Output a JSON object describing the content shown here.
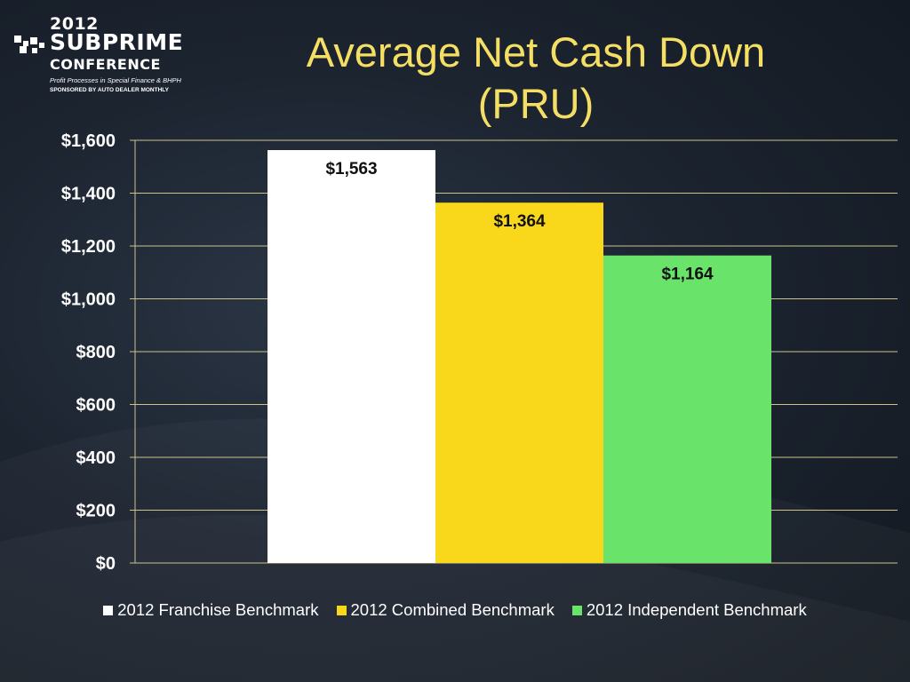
{
  "logo": {
    "year": "2012",
    "brand": "SUBPRIME",
    "conference": "CONFERENCE",
    "tagline": "Profit Processes in Special Finance & BHPH",
    "sponsor": "SPONSORED BY AUTO DEALER MONTHLY"
  },
  "title_lines": [
    "Average Net Cash Down",
    "(PRU)"
  ],
  "colors": {
    "title": "#f4de63",
    "grid": "#c9c48a",
    "franchise": "#ffffff",
    "combined": "#f9d81b",
    "independent": "#6ae36a"
  },
  "chart_data": {
    "type": "bar",
    "title": "Average Net Cash Down (PRU)",
    "categories": [
      ""
    ],
    "series": [
      {
        "name": "2012 Franchise Benchmark",
        "values": [
          1563
        ],
        "label": "$1,563",
        "color": "#ffffff"
      },
      {
        "name": "2012 Combined Benchmark",
        "values": [
          1364
        ],
        "label": "$1,364",
        "color": "#f9d81b"
      },
      {
        "name": "2012 Independent Benchmark",
        "values": [
          1164
        ],
        "label": "$1,164",
        "color": "#6ae36a"
      }
    ],
    "ylim": [
      0,
      1600
    ],
    "yticks": [
      0,
      200,
      400,
      600,
      800,
      1000,
      1200,
      1400,
      1600
    ],
    "ytick_labels": [
      "$0",
      "$200",
      "$400",
      "$600",
      "$800",
      "$1,000",
      "$1,200",
      "$1,400",
      "$1,600"
    ],
    "grid": true,
    "legend_position": "bottom"
  }
}
